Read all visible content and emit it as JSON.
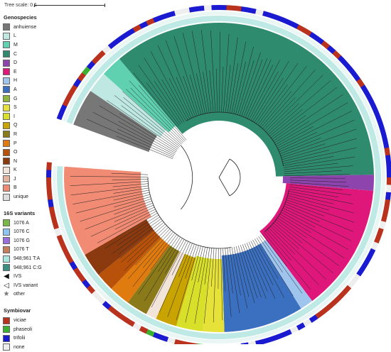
{
  "scale_label": "Tree scale: 0.1",
  "genospecies": {
    "title": "Genospecies",
    "items": [
      {
        "label": "anhuiense",
        "color": "#777777"
      },
      {
        "label": "L",
        "color": "#bfe8e3"
      },
      {
        "label": "M",
        "color": "#5fd0b0"
      },
      {
        "label": "C",
        "color": "#2e8b6e"
      },
      {
        "label": "D",
        "color": "#8e44ad"
      },
      {
        "label": "E",
        "color": "#e0177a"
      },
      {
        "label": "H",
        "color": "#9fc4ee"
      },
      {
        "label": "A",
        "color": "#3b6fc0"
      },
      {
        "label": "G",
        "color": "#8fb63a"
      },
      {
        "label": "S",
        "color": "#e6e23a"
      },
      {
        "label": "I",
        "color": "#d9e02a"
      },
      {
        "label": "Q",
        "color": "#c9a400"
      },
      {
        "label": "R",
        "color": "#8a7a1a"
      },
      {
        "label": "P",
        "color": "#e07b10"
      },
      {
        "label": "O",
        "color": "#b8520a"
      },
      {
        "label": "N",
        "color": "#8b3a10"
      },
      {
        "label": "K",
        "color": "#f2e4d8"
      },
      {
        "label": "J",
        "color": "#e4b3a0"
      },
      {
        "label": "B",
        "color": "#f28b73"
      },
      {
        "label": "unique",
        "color": "#dddddd"
      }
    ]
  },
  "variants": {
    "title": "16S variants",
    "items": [
      {
        "label": "1076 A",
        "color": "#7ab648"
      },
      {
        "label": "1076 C",
        "color": "#8ec4f0"
      },
      {
        "label": "1076 G",
        "color": "#9b6ee0"
      },
      {
        "label": "1076 T",
        "color": "#c47f5a"
      },
      {
        "label": "948;961 T:A",
        "color": "#a8e6e0"
      },
      {
        "label": "948;961 C:G",
        "color": "#3a8f80"
      }
    ],
    "symbols": [
      {
        "label": "IVS",
        "icon": "filled-triangle-icon",
        "glyph": "◀"
      },
      {
        "label": "IVS variant",
        "icon": "open-triangle-icon",
        "glyph": "◁"
      },
      {
        "label": "other",
        "icon": "star-icon",
        "glyph": "★"
      }
    ]
  },
  "symbiovar": {
    "title": "Symbiovar",
    "items": [
      {
        "label": "viciae",
        "color": "#b8321e"
      },
      {
        "label": "phaseoli",
        "color": "#3cb030"
      },
      {
        "label": "trifolii",
        "color": "#1a1ad0"
      },
      {
        "label": "none",
        "color": "#eeeeee"
      }
    ]
  }
}
